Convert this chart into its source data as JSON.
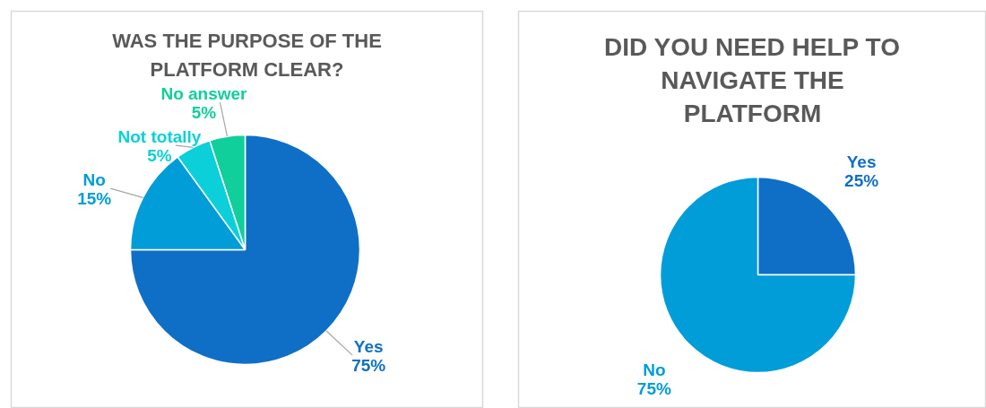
{
  "chart_data": [
    {
      "type": "pie",
      "title": "WAS THE PURPOSE OF THE PLATFORM CLEAR?",
      "categories": [
        "Yes",
        "No",
        "Not totally",
        "No answer"
      ],
      "values": [
        75,
        15,
        5,
        5
      ],
      "colors": [
        "#0f6fc6",
        "#009dd9",
        "#0bd0d9",
        "#10cf9b"
      ],
      "value_labels": [
        "75%",
        "15%",
        "5%",
        "5%"
      ]
    },
    {
      "type": "pie",
      "title": "DID YOU NEED HELP TO NAVIGATE THE PLATFORM",
      "categories": [
        "Yes",
        "No"
      ],
      "values": [
        25,
        75
      ],
      "colors": [
        "#0f6fc6",
        "#009dd9"
      ],
      "value_labels": [
        "25%",
        "75%"
      ]
    }
  ]
}
